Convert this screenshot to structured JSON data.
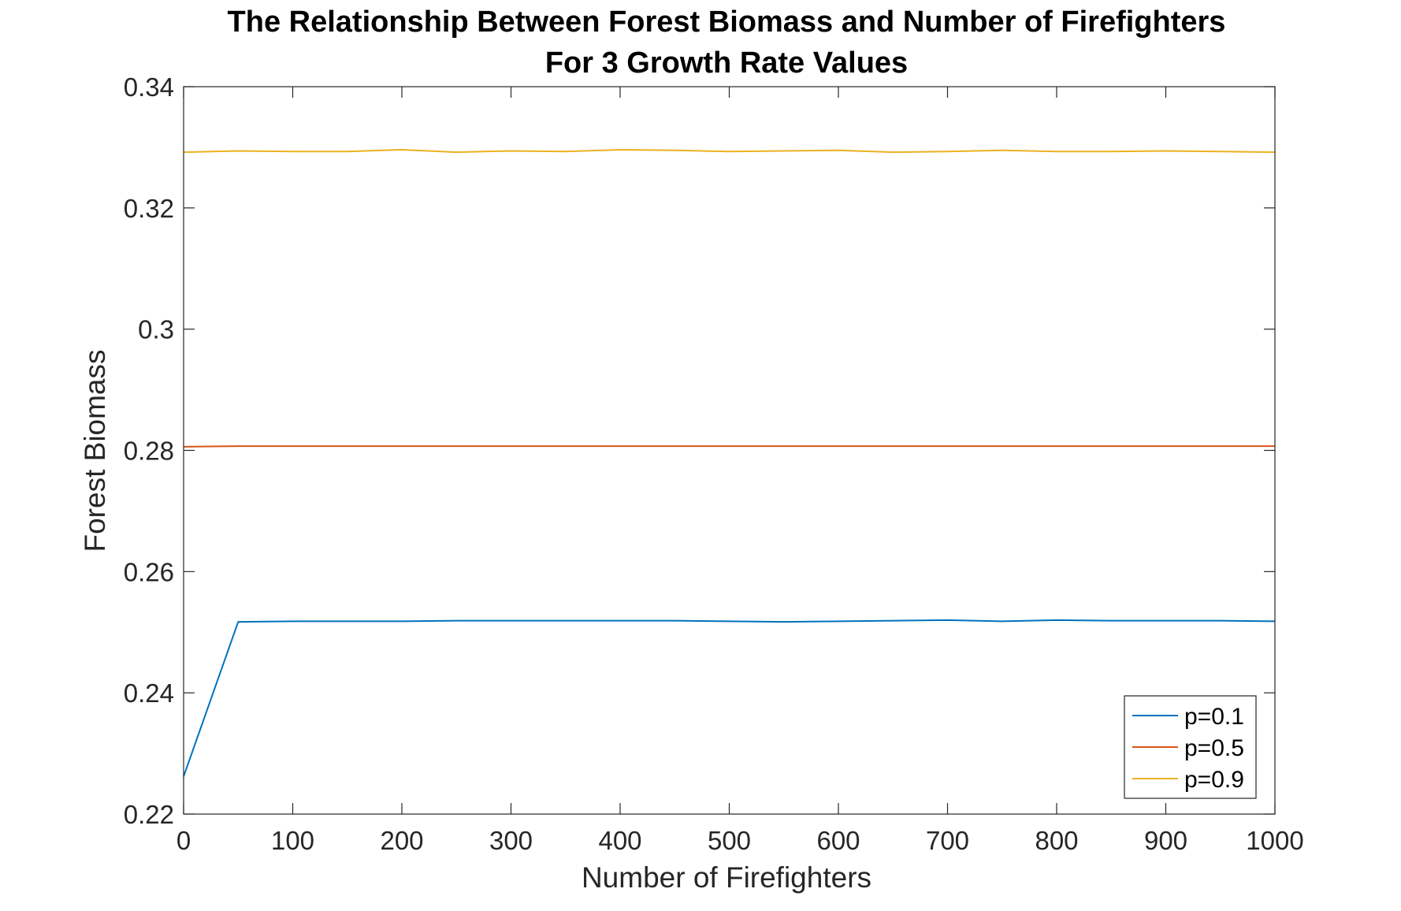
{
  "chart_data": {
    "type": "line",
    "title_line1": "The Relationship Between Forest Biomass and Number of Firefighters",
    "title_line2": "For 3 Growth Rate Values",
    "xlabel": "Number of Firefighters",
    "ylabel": "Forest Biomass",
    "xlim": [
      0,
      1000
    ],
    "ylim": [
      0.22,
      0.34
    ],
    "xticks": [
      0,
      100,
      200,
      300,
      400,
      500,
      600,
      700,
      800,
      900,
      1000
    ],
    "xtick_labels": [
      "0",
      "100",
      "200",
      "300",
      "400",
      "500",
      "600",
      "700",
      "800",
      "900",
      "1000"
    ],
    "yticks": [
      0.22,
      0.24,
      0.26,
      0.28,
      0.3,
      0.32,
      0.34
    ],
    "ytick_labels": [
      "0.22",
      "0.24",
      "0.26",
      "0.28",
      "0.3",
      "0.32",
      "0.34"
    ],
    "grid": false,
    "legend_position": "bottom-right",
    "x": [
      0,
      50,
      100,
      150,
      200,
      250,
      300,
      350,
      400,
      450,
      500,
      550,
      600,
      650,
      700,
      750,
      800,
      850,
      900,
      950,
      1000
    ],
    "series": [
      {
        "name": "p=0.1",
        "color": "#0072BD",
        "values": [
          0.2262,
          0.2517,
          0.2518,
          0.2518,
          0.2518,
          0.2519,
          0.2519,
          0.2519,
          0.2519,
          0.2519,
          0.2518,
          0.2517,
          0.2518,
          0.2519,
          0.252,
          0.2518,
          0.252,
          0.2519,
          0.2519,
          0.2519,
          0.2518
        ]
      },
      {
        "name": "p=0.5",
        "color": "#D95319",
        "values": [
          0.2806,
          0.2807,
          0.2807,
          0.2807,
          0.2807,
          0.2807,
          0.2807,
          0.2807,
          0.2807,
          0.2807,
          0.2807,
          0.2807,
          0.2807,
          0.2807,
          0.2807,
          0.2807,
          0.2807,
          0.2807,
          0.2807,
          0.2807,
          0.2807
        ]
      },
      {
        "name": "p=0.9",
        "color": "#EDB120",
        "values": [
          0.3292,
          0.3294,
          0.3293,
          0.3293,
          0.3296,
          0.3292,
          0.3294,
          0.3293,
          0.3296,
          0.3295,
          0.3293,
          0.3294,
          0.3295,
          0.3292,
          0.3293,
          0.3295,
          0.3293,
          0.3293,
          0.3294,
          0.3293,
          0.3292
        ]
      }
    ]
  },
  "colors": {
    "axis": "#262626",
    "background": "#ffffff"
  }
}
